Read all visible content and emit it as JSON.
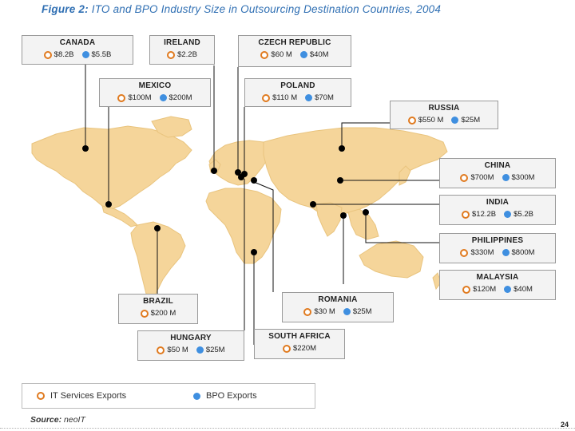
{
  "title": {
    "figure_label": "Figure 2:",
    "text": "ITO and BPO Industry Size in Outsourcing Destination Countries, 2004"
  },
  "colors": {
    "it_services": "#e07a1f",
    "bpo": "#3f8fe0",
    "land": "#f5d59a",
    "title": "#2f6fb3"
  },
  "countries": [
    {
      "name": "CANADA",
      "it": "$8.2B",
      "bpo": "$5.5B"
    },
    {
      "name": "IRELAND",
      "it": "$2.2B",
      "bpo": ""
    },
    {
      "name": "CZECH REPUBLIC",
      "it": "$60 M",
      "bpo": "$40M"
    },
    {
      "name": "MEXICO",
      "it": "$100M",
      "bpo": "$200M"
    },
    {
      "name": "POLAND",
      "it": "$110 M",
      "bpo": "$70M"
    },
    {
      "name": "RUSSIA",
      "it": "$550 M",
      "bpo": "$25M"
    },
    {
      "name": "CHINA",
      "it": "$700M",
      "bpo": "$300M"
    },
    {
      "name": "INDIA",
      "it": "$12.2B",
      "bpo": "$5.2B"
    },
    {
      "name": "PHILIPPINES",
      "it": "$330M",
      "bpo": "$800M"
    },
    {
      "name": "MALAYSIA",
      "it": "$120M",
      "bpo": "$40M"
    },
    {
      "name": "BRAZIL",
      "it": "$200 M",
      "bpo": ""
    },
    {
      "name": "ROMANIA",
      "it": "$30 M",
      "bpo": "$25M"
    },
    {
      "name": "HUNGARY",
      "it": "$50 M",
      "bpo": "$25M"
    },
    {
      "name": "SOUTH AFRICA",
      "it": "$220M",
      "bpo": ""
    }
  ],
  "legend": {
    "it_label": "IT Services Exports",
    "bpo_label": "BPO Exports"
  },
  "source": {
    "label": "Source:",
    "value": "neoIT"
  },
  "page_number": "24"
}
